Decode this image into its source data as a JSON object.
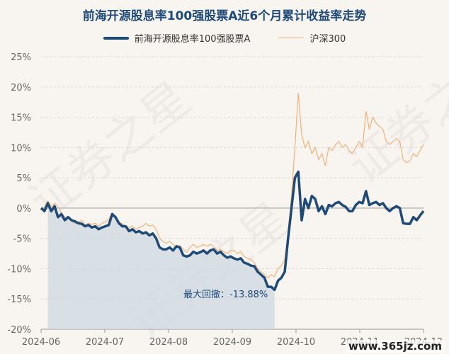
{
  "title": "前海开源股息率100强股票A近6个月累计收益率走势",
  "legend": {
    "fund": "前海开源股息率100强股票A",
    "index": "沪深300"
  },
  "watermark": "证券之星",
  "site_mark": "www.365jz.com",
  "drawdown_label": "最大回撤：-13.88%",
  "colors": {
    "fund": "#1e4a78",
    "index": "#f0b27a",
    "drawdown_fill": "#cdd8e2",
    "grid": "#d8d8d8"
  },
  "chart_data": {
    "type": "line",
    "x_ticks": [
      "2024-06",
      "2024-07",
      "2024-08",
      "2024-09",
      "2024-10",
      "2024-11",
      "2024-12"
    ],
    "y_ticks": [
      "25%",
      "20%",
      "15%",
      "10%",
      "5%",
      "0%",
      "-5%",
      "-10%",
      "-15%",
      "-20%"
    ],
    "ylim": [
      -20,
      25
    ],
    "grid": true,
    "legend_position": "top-center",
    "series": [
      {
        "name": "前海开源股息率100强股票A",
        "values": [
          0,
          -0.5,
          0.8,
          -0.5,
          0.3,
          -1.5,
          -1.0,
          -2.0,
          -1.5,
          -2.0,
          -2.2,
          -2.5,
          -2.6,
          -3.0,
          -2.8,
          -3.2,
          -3.0,
          -3.5,
          -3.2,
          -3.0,
          -2.8,
          -1.0,
          -1.5,
          -2.5,
          -3.0,
          -3.0,
          -3.8,
          -3.5,
          -4.0,
          -3.8,
          -4.2,
          -4.0,
          -4.5,
          -4.2,
          -5.0,
          -6.5,
          -6.8,
          -6.8,
          -6.5,
          -7.0,
          -6.3,
          -6.5,
          -7.8,
          -8.0,
          -7.8,
          -7.2,
          -7.5,
          -7.3,
          -7.0,
          -7.5,
          -7.0,
          -6.8,
          -7.5,
          -7.2,
          -7.8,
          -8.2,
          -8.0,
          -8.3,
          -8.5,
          -8.3,
          -9.0,
          -9.2,
          -9.5,
          -9.6,
          -10.5,
          -11.0,
          -11.5,
          -13.0,
          -13.0,
          -13.5,
          -12.0,
          -11.5,
          -10.5,
          -5.0,
          0.0,
          5.0,
          6.0,
          -2.0,
          1.5,
          0.0,
          2.0,
          1.5,
          -0.5,
          0.3,
          -1.0,
          0.5,
          0.3,
          0.8,
          1.0,
          0.5,
          0.2,
          -0.5,
          -0.5,
          0.5,
          1.0,
          0.8,
          2.8,
          0.5,
          0.8,
          1.0,
          0.5,
          0.8,
          0.0,
          -0.5,
          0.0,
          0.3,
          0.0,
          -2.5,
          -2.6,
          -2.6,
          -1.5,
          -2.0,
          -1.2,
          -0.5
        ]
      },
      {
        "name": "沪深300",
        "values": [
          0,
          0.2,
          1.2,
          0.2,
          0.8,
          0.2,
          -0.8,
          -1.5,
          -1.5,
          -2.2,
          -2.5,
          -2.3,
          -2.0,
          -2.8,
          -2.5,
          -2.7,
          -2.5,
          -3.0,
          -2.5,
          -2.3,
          -1.8,
          -0.8,
          -1.5,
          -2.3,
          -2.6,
          -3.0,
          -3.2,
          -3.0,
          -3.5,
          -3.2,
          -3.0,
          -2.5,
          -3.0,
          -2.8,
          -3.5,
          -5.0,
          -5.5,
          -5.8,
          -5.5,
          -6.0,
          -6.5,
          -6.2,
          -6.8,
          -7.3,
          -6.5,
          -6.0,
          -6.5,
          -6.3,
          -6.0,
          -6.3,
          -6.0,
          -6.3,
          -7.0,
          -6.8,
          -7.2,
          -7.5,
          -7.0,
          -7.0,
          -7.5,
          -7.2,
          -8.0,
          -8.3,
          -8.5,
          -9.0,
          -10.0,
          -10.5,
          -11.0,
          -11.5,
          -11.0,
          -11.3,
          -10.0,
          -9.5,
          -8.5,
          -4.0,
          2.0,
          10.0,
          19.0,
          12.0,
          10.0,
          11.0,
          9.0,
          10.0,
          8.0,
          9.0,
          7.0,
          10.0,
          9.5,
          10.5,
          11.0,
          10.0,
          10.5,
          9.5,
          9.0,
          10.0,
          11.0,
          10.0,
          16.0,
          13.0,
          15.0,
          14.0,
          13.5,
          13.0,
          11.0,
          10.5,
          11.0,
          11.5,
          11.0,
          8.0,
          7.5,
          7.8,
          9.0,
          8.5,
          9.5,
          10.5
        ]
      }
    ],
    "max_drawdown": {
      "label": "最大回撤：-13.88%",
      "value": -13.88
    }
  }
}
